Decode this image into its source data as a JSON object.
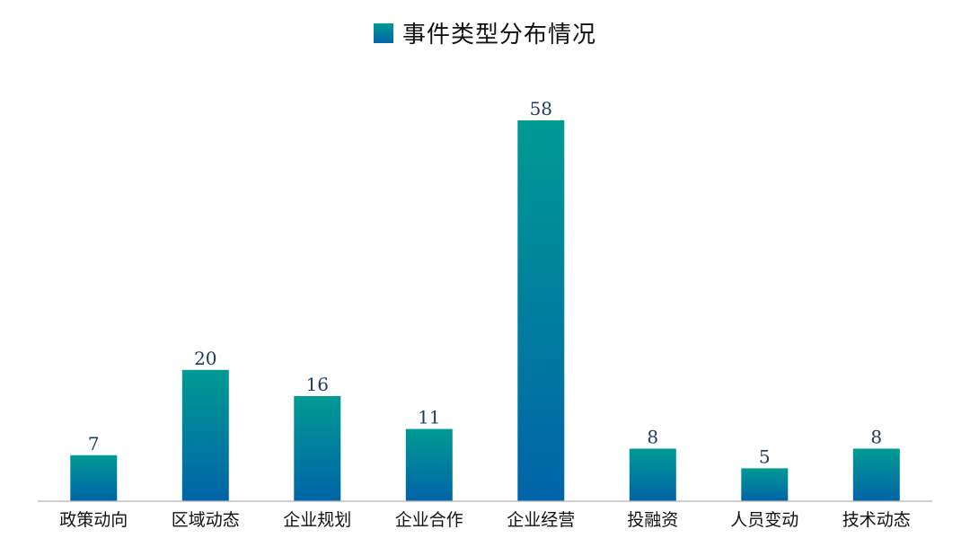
{
  "chart_data": {
    "type": "bar",
    "title": "",
    "xlabel": "",
    "ylabel": "",
    "categories": [
      "政策动向",
      "区域动态",
      "企业规划",
      "企业合作",
      "企业经营",
      "投融资",
      "人员变动",
      "技术动态"
    ],
    "series": [
      {
        "name": "事件类型分布情况",
        "values": [
          7,
          20,
          16,
          11,
          58,
          8,
          5,
          8
        ]
      }
    ],
    "ylim": [
      0,
      60
    ],
    "grid": false,
    "legend_position": "top-center",
    "colors": {
      "bar_top": "#009a93",
      "bar_bottom": "#0064a8",
      "data_label": "#1f3b63",
      "axis": "#b5b5b5",
      "tick_label": "#111111"
    }
  }
}
